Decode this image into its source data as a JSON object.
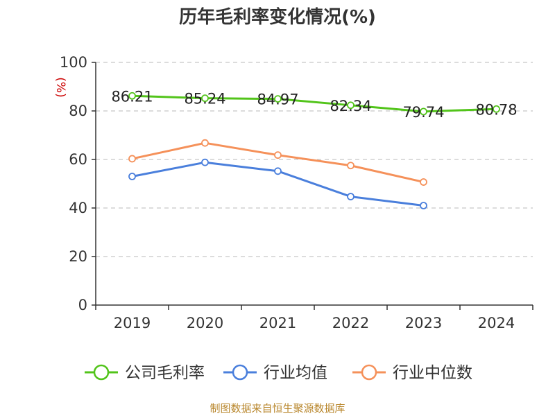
{
  "chart_data": {
    "type": "line",
    "title": "历年毛利率变化情况(%)",
    "ylabel": "(%)",
    "ylim": [
      0,
      100
    ],
    "yticks": [
      0,
      20,
      40,
      60,
      80,
      100
    ],
    "categories": [
      "2019",
      "2020",
      "2021",
      "2022",
      "2023",
      "2024"
    ],
    "grid": true,
    "legend_position": "bottom",
    "series": [
      {
        "name": "公司毛利率",
        "color": "#52c41a",
        "values": [
          86.21,
          85.24,
          84.97,
          82.34,
          79.74,
          80.78
        ],
        "labels": [
          "86.21",
          "85.24",
          "84.97",
          "82.34",
          "79.74",
          "80.78"
        ]
      },
      {
        "name": "行业均值",
        "color": "#4a7fdc",
        "values": [
          53.0,
          58.8,
          55.2,
          44.7,
          41.0,
          null
        ]
      },
      {
        "name": "行业中位数",
        "color": "#f5915a",
        "values": [
          60.3,
          66.8,
          61.8,
          57.5,
          50.7,
          null
        ]
      }
    ]
  },
  "source": "制图数据来自恒生聚源数据库"
}
